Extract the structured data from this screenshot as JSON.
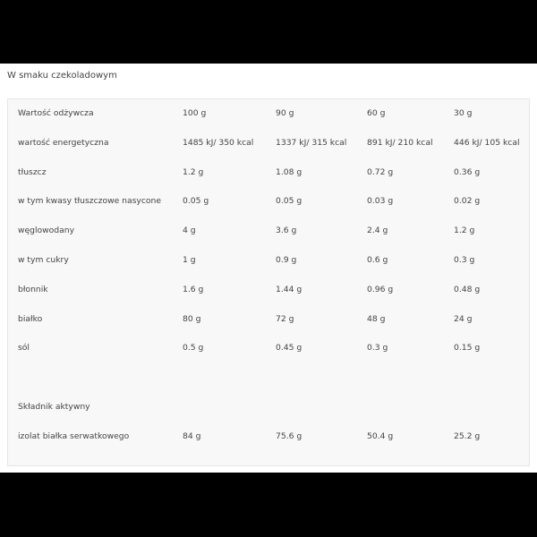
{
  "title": "W smaku czekoladowym",
  "rows": [
    [
      "Wartość odżywcza",
      "100 g",
      "90 g",
      "60 g",
      "30 g"
    ],
    [
      "wartość energetyczna",
      "1485 kJ/ 350 kcal",
      "1337 kJ/ 315 kcal",
      "891 kJ/ 210 kcal",
      "446 kJ/ 105 kcal"
    ],
    [
      "tłuszcz",
      "1.2 g",
      "1.08 g",
      "0.72 g",
      "0.36 g"
    ],
    [
      "w tym kwasy tłuszczowe nasycone",
      "0.05 g",
      "0.05 g",
      "0.03 g",
      "0.02 g"
    ],
    [
      "węglowodany",
      "4 g",
      "3.6 g",
      "2.4 g",
      "1.2 g"
    ],
    [
      "w tym cukry",
      "1 g",
      "0.9 g",
      "0.6 g",
      "0.3 g"
    ],
    [
      "błonnik",
      "1.6 g",
      "1.44 g",
      "0.96 g",
      "0.48 g"
    ],
    [
      "białko",
      "80 g",
      "72 g",
      "48 g",
      "24 g"
    ],
    [
      "sól",
      "0.5 g",
      "0.45 g",
      "0.3 g",
      "0.15 g"
    ],
    [
      "",
      "",
      "",
      "",
      ""
    ],
    [
      "Składnik aktywny",
      "",
      "",
      "",
      ""
    ],
    [
      "izolat białka serwatkowego",
      "84 g",
      "75.6 g",
      "50.4 g",
      "25.2 g"
    ]
  ]
}
